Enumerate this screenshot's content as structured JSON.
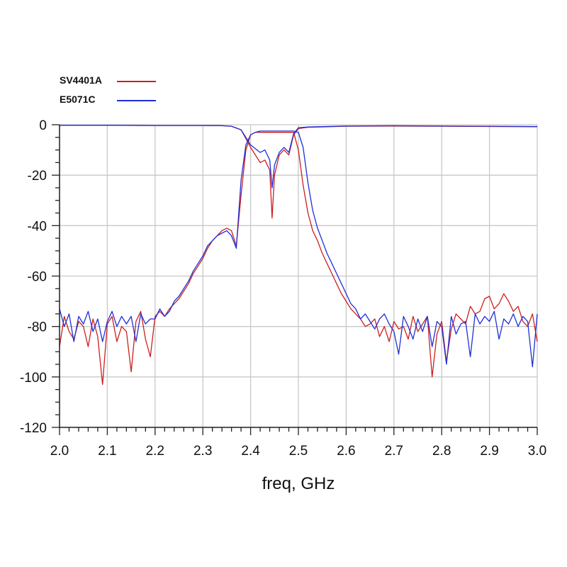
{
  "chart_data": {
    "type": "line",
    "title": "",
    "xlabel": "freq, GHz",
    "ylabel": "",
    "xlim": [
      2.0,
      3.0
    ],
    "ylim": [
      -120,
      0
    ],
    "x_ticks": [
      2.0,
      2.1,
      2.2,
      2.3,
      2.4,
      2.5,
      2.6,
      2.7,
      2.8,
      2.9,
      3.0
    ],
    "x_tick_labels": [
      "2.0",
      "2.1",
      "2.2",
      "2.3",
      "2.4",
      "2.5",
      "2.6",
      "2.7",
      "2.8",
      "2.9",
      "3.0"
    ],
    "y_ticks": [
      0,
      -20,
      -40,
      -60,
      -80,
      -100,
      -120
    ],
    "y_tick_labels": [
      "0",
      "-20",
      "-40",
      "-60",
      "-80",
      "-100",
      "-120"
    ],
    "grid": true,
    "legend_position": "top-left",
    "series": [
      {
        "name": "SV4401A",
        "color": "#cc1f1f",
        "transmission": {
          "x": [
            2.0,
            2.01,
            2.02,
            2.03,
            2.04,
            2.05,
            2.06,
            2.07,
            2.08,
            2.09,
            2.1,
            2.11,
            2.12,
            2.13,
            2.14,
            2.15,
            2.16,
            2.17,
            2.18,
            2.19,
            2.2,
            2.21,
            2.22,
            2.23,
            2.24,
            2.25,
            2.26,
            2.27,
            2.28,
            2.29,
            2.3,
            2.31,
            2.32,
            2.33,
            2.34,
            2.35,
            2.36,
            2.37,
            2.38,
            2.39,
            2.4,
            2.41,
            2.42,
            2.43,
            2.44,
            2.445,
            2.45,
            2.46,
            2.47,
            2.48,
            2.49,
            2.5,
            2.51,
            2.52,
            2.53,
            2.54,
            2.55,
            2.56,
            2.57,
            2.58,
            2.59,
            2.6,
            2.61,
            2.62,
            2.63,
            2.64,
            2.65,
            2.66,
            2.67,
            2.68,
            2.69,
            2.7,
            2.71,
            2.72,
            2.73,
            2.74,
            2.75,
            2.76,
            2.77,
            2.78,
            2.79,
            2.8,
            2.81,
            2.82,
            2.83,
            2.84,
            2.85,
            2.86,
            2.87,
            2.88,
            2.89,
            2.9,
            2.91,
            2.92,
            2.93,
            2.94,
            2.95,
            2.96,
            2.97,
            2.98,
            2.99,
            3.0
          ],
          "y": [
            -88,
            -76,
            -82,
            -85,
            -78,
            -80,
            -88,
            -77,
            -84,
            -103,
            -79,
            -76,
            -86,
            -80,
            -82,
            -98,
            -78,
            -74,
            -85,
            -92,
            -76,
            -74,
            -76,
            -73,
            -71,
            -69,
            -66,
            -63,
            -59,
            -56,
            -53,
            -49,
            -46,
            -44,
            -42,
            -41,
            -42,
            -48,
            -28,
            -10,
            -4,
            -3,
            -3,
            -3,
            -3,
            -3,
            -3,
            -3,
            -3,
            -3,
            -3,
            -10,
            -24,
            -35,
            -42,
            -46,
            -51,
            -55,
            -59,
            -63,
            -67,
            -70,
            -73,
            -75,
            -77,
            -80,
            -79,
            -77,
            -84,
            -80,
            -86,
            -78,
            -81,
            -80,
            -85,
            -76,
            -82,
            -79,
            -76,
            -100,
            -83,
            -78,
            -94,
            -81,
            -75,
            -77,
            -79,
            -72,
            -75,
            -74,
            -69,
            -68,
            -73,
            -71,
            -67,
            -70,
            -74,
            -72,
            -78,
            -80,
            -75,
            -86
          ]
        },
        "reflection": {
          "x": [
            2.0,
            2.1,
            2.2,
            2.3,
            2.34,
            2.36,
            2.38,
            2.4,
            2.42,
            2.43,
            2.44,
            2.445,
            2.45,
            2.46,
            2.47,
            2.48,
            2.49,
            2.5,
            2.52,
            2.6,
            2.7,
            2.8,
            2.9,
            3.0
          ],
          "y": [
            -0.2,
            -0.2,
            -0.3,
            -0.3,
            -0.4,
            -0.6,
            -2,
            -9,
            -15,
            -14,
            -18,
            -37,
            -20,
            -12,
            -10,
            -12,
            -4,
            -1.5,
            -1,
            -0.6,
            -0.5,
            -0.6,
            -0.7,
            -0.8
          ]
        }
      },
      {
        "name": "E5071C",
        "color": "#1f2fd8",
        "transmission": {
          "x": [
            2.0,
            2.01,
            2.02,
            2.03,
            2.04,
            2.05,
            2.06,
            2.07,
            2.08,
            2.09,
            2.1,
            2.11,
            2.12,
            2.13,
            2.14,
            2.15,
            2.16,
            2.17,
            2.18,
            2.19,
            2.2,
            2.21,
            2.22,
            2.23,
            2.24,
            2.25,
            2.26,
            2.27,
            2.28,
            2.29,
            2.3,
            2.31,
            2.32,
            2.33,
            2.34,
            2.35,
            2.36,
            2.37,
            2.38,
            2.39,
            2.4,
            2.41,
            2.42,
            2.43,
            2.44,
            2.45,
            2.46,
            2.47,
            2.48,
            2.49,
            2.5,
            2.51,
            2.52,
            2.53,
            2.54,
            2.55,
            2.56,
            2.57,
            2.58,
            2.59,
            2.6,
            2.61,
            2.62,
            2.63,
            2.64,
            2.65,
            2.66,
            2.67,
            2.68,
            2.69,
            2.7,
            2.71,
            2.72,
            2.73,
            2.74,
            2.75,
            2.76,
            2.77,
            2.78,
            2.79,
            2.8,
            2.81,
            2.82,
            2.83,
            2.84,
            2.85,
            2.86,
            2.87,
            2.88,
            2.89,
            2.9,
            2.91,
            2.92,
            2.93,
            2.94,
            2.95,
            2.96,
            2.97,
            2.98,
            2.99,
            3.0
          ],
          "y": [
            -73,
            -80,
            -75,
            -86,
            -76,
            -79,
            -74,
            -82,
            -77,
            -86,
            -78,
            -74,
            -80,
            -76,
            -79,
            -76,
            -86,
            -75,
            -79,
            -77,
            -77,
            -73,
            -76,
            -74,
            -70,
            -68,
            -65,
            -62,
            -58,
            -55,
            -52,
            -48,
            -46,
            -44,
            -43,
            -42,
            -44,
            -49,
            -22,
            -8,
            -4,
            -3,
            -2.5,
            -2.5,
            -2.5,
            -2.5,
            -2.5,
            -2.5,
            -2.5,
            -2.5,
            -3,
            -9,
            -23,
            -34,
            -41,
            -46,
            -51,
            -55,
            -59,
            -63,
            -67,
            -71,
            -73,
            -77,
            -75,
            -78,
            -81,
            -77,
            -75,
            -79,
            -82,
            -91,
            -76,
            -80,
            -85,
            -77,
            -82,
            -76,
            -88,
            -78,
            -80,
            -95,
            -76,
            -83,
            -79,
            -78,
            -92,
            -75,
            -79,
            -76,
            -78,
            -74,
            -85,
            -77,
            -79,
            -75,
            -80,
            -76,
            -78,
            -96,
            -75
          ]
        },
        "reflection": {
          "x": [
            2.0,
            2.1,
            2.2,
            2.3,
            2.34,
            2.36,
            2.38,
            2.4,
            2.42,
            2.43,
            2.44,
            2.445,
            2.45,
            2.46,
            2.47,
            2.48,
            2.49,
            2.5,
            2.52,
            2.6,
            2.7,
            2.8,
            2.9,
            3.0
          ],
          "y": [
            -0.2,
            -0.2,
            -0.3,
            -0.3,
            -0.4,
            -0.6,
            -2,
            -8,
            -11,
            -10,
            -14,
            -25,
            -16,
            -11,
            -9,
            -11,
            -3.5,
            -1.2,
            -0.9,
            -0.5,
            -0.4,
            -0.5,
            -0.6,
            -0.7
          ]
        }
      }
    ]
  }
}
